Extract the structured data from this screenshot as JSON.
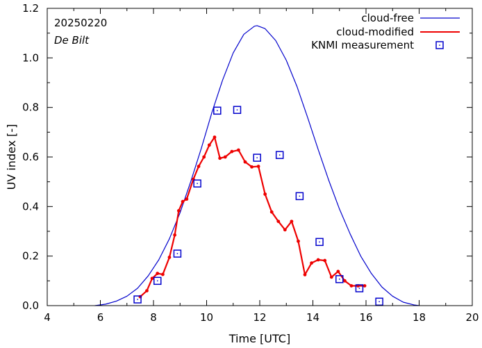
{
  "chart_data": {
    "type": "line",
    "title": "",
    "xlabel": "Time  [UTC]",
    "ylabel": "UV index  [-]",
    "xlim": [
      4,
      20
    ],
    "ylim": [
      0,
      1.2
    ],
    "xticks": [
      4,
      6,
      8,
      10,
      12,
      14,
      16,
      18,
      20
    ],
    "yticks": [
      0.0,
      0.2,
      0.4,
      0.6,
      0.8,
      1.0,
      1.2
    ],
    "xtick_labels": [
      "4",
      "6",
      "8",
      "10",
      "12",
      "14",
      "16",
      "18",
      "20"
    ],
    "ytick_labels": [
      "0.0",
      "0.2",
      "0.4",
      "0.6",
      "0.8",
      "1.0",
      "1.2"
    ],
    "annotations": {
      "date": "20250220",
      "station": "De Bilt"
    },
    "legend_position": "top-right",
    "series": [
      {
        "name": "cloud-free",
        "style": "line",
        "color": "#0000cc",
        "x": [
          5.8,
          6.2,
          6.6,
          7.0,
          7.4,
          7.8,
          8.2,
          8.6,
          9.0,
          9.4,
          9.8,
          10.2,
          10.6,
          11.0,
          11.4,
          11.8,
          11.9,
          12.2,
          12.6,
          13.0,
          13.4,
          13.8,
          14.2,
          14.6,
          15.0,
          15.4,
          15.8,
          16.2,
          16.6,
          17.0,
          17.4,
          17.8,
          18.0
        ],
        "y": [
          0.0,
          0.006,
          0.018,
          0.038,
          0.07,
          0.12,
          0.185,
          0.27,
          0.375,
          0.5,
          0.635,
          0.78,
          0.91,
          1.02,
          1.095,
          1.128,
          1.13,
          1.118,
          1.07,
          0.99,
          0.885,
          0.76,
          0.63,
          0.505,
          0.39,
          0.29,
          0.2,
          0.13,
          0.075,
          0.038,
          0.014,
          0.003,
          0.0
        ]
      },
      {
        "name": "cloud-modified",
        "style": "line-points",
        "color": "#ee0000",
        "x": [
          7.5,
          7.75,
          7.95,
          8.15,
          8.35,
          8.6,
          8.8,
          8.95,
          9.1,
          9.25,
          9.5,
          9.7,
          9.9,
          10.1,
          10.3,
          10.5,
          10.7,
          10.95,
          11.2,
          11.45,
          11.7,
          11.95,
          12.2,
          12.45,
          12.7,
          12.95,
          13.2,
          13.45,
          13.7,
          13.95,
          14.2,
          14.45,
          14.7,
          14.95,
          15.2,
          15.45,
          15.7,
          15.95
        ],
        "y": [
          0.036,
          0.06,
          0.11,
          0.13,
          0.126,
          0.195,
          0.285,
          0.383,
          0.42,
          0.43,
          0.51,
          0.562,
          0.6,
          0.648,
          0.68,
          0.595,
          0.6,
          0.622,
          0.628,
          0.58,
          0.56,
          0.562,
          0.45,
          0.378,
          0.34,
          0.306,
          0.34,
          0.26,
          0.125,
          0.172,
          0.185,
          0.182,
          0.115,
          0.138,
          0.1,
          0.08,
          0.08,
          0.08
        ]
      },
      {
        "name": "KNMI measurement",
        "style": "points",
        "color": "#0000cc",
        "x": [
          7.4,
          8.15,
          8.9,
          9.65,
          10.4,
          11.15,
          11.9,
          12.75,
          13.5,
          14.25,
          15.0,
          15.75,
          16.5
        ],
        "y": [
          0.025,
          0.1,
          0.21,
          0.493,
          0.787,
          0.79,
          0.597,
          0.608,
          0.442,
          0.257,
          0.107,
          0.07,
          0.016
        ]
      }
    ]
  }
}
